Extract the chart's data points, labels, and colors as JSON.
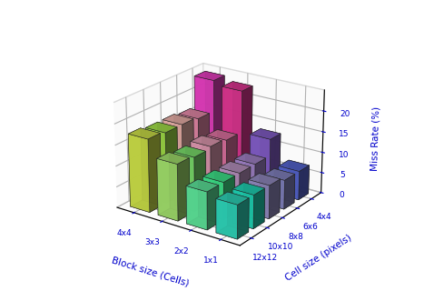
{
  "cell_sizes": [
    "12x12",
    "10x10",
    "8x8",
    "6x6",
    "4x4"
  ],
  "block_sizes": [
    "4x4",
    "3x3",
    "2x2",
    "1x1"
  ],
  "values": [
    [
      17.5,
      13.5,
      9.0,
      8.0
    ],
    [
      17.0,
      13.0,
      9.0,
      8.0
    ],
    [
      17.0,
      13.5,
      9.0,
      8.0
    ],
    [
      16.5,
      13.0,
      9.0,
      7.0
    ],
    [
      24.0,
      23.0,
      13.0,
      7.0
    ]
  ],
  "colors": [
    [
      "#d4e84a",
      "#a8e84a",
      "#f5b8b0",
      "#f090b0",
      "#f040c8"
    ],
    [
      "#a8e870",
      "#80e870",
      "#e8a0b8",
      "#e878a8",
      "#e83898"
    ],
    [
      "#60eea0",
      "#40ee90",
      "#c098c8",
      "#a888d0",
      "#8860d0"
    ],
    [
      "#30ddc0",
      "#20ddbc",
      "#9890c8",
      "#8888c8",
      "#5868d8"
    ]
  ],
  "xlabel": "Cell size (pixels)",
  "ylabel": "Miss Rate (%)",
  "zlabel": "Block size (Cells)",
  "zlim": [
    0,
    25
  ],
  "background_color": "#ffffff",
  "label_color": "#0000cc",
  "figsize": [
    4.67,
    3.31
  ],
  "dpi": 100,
  "elev": 22,
  "azim": -55
}
